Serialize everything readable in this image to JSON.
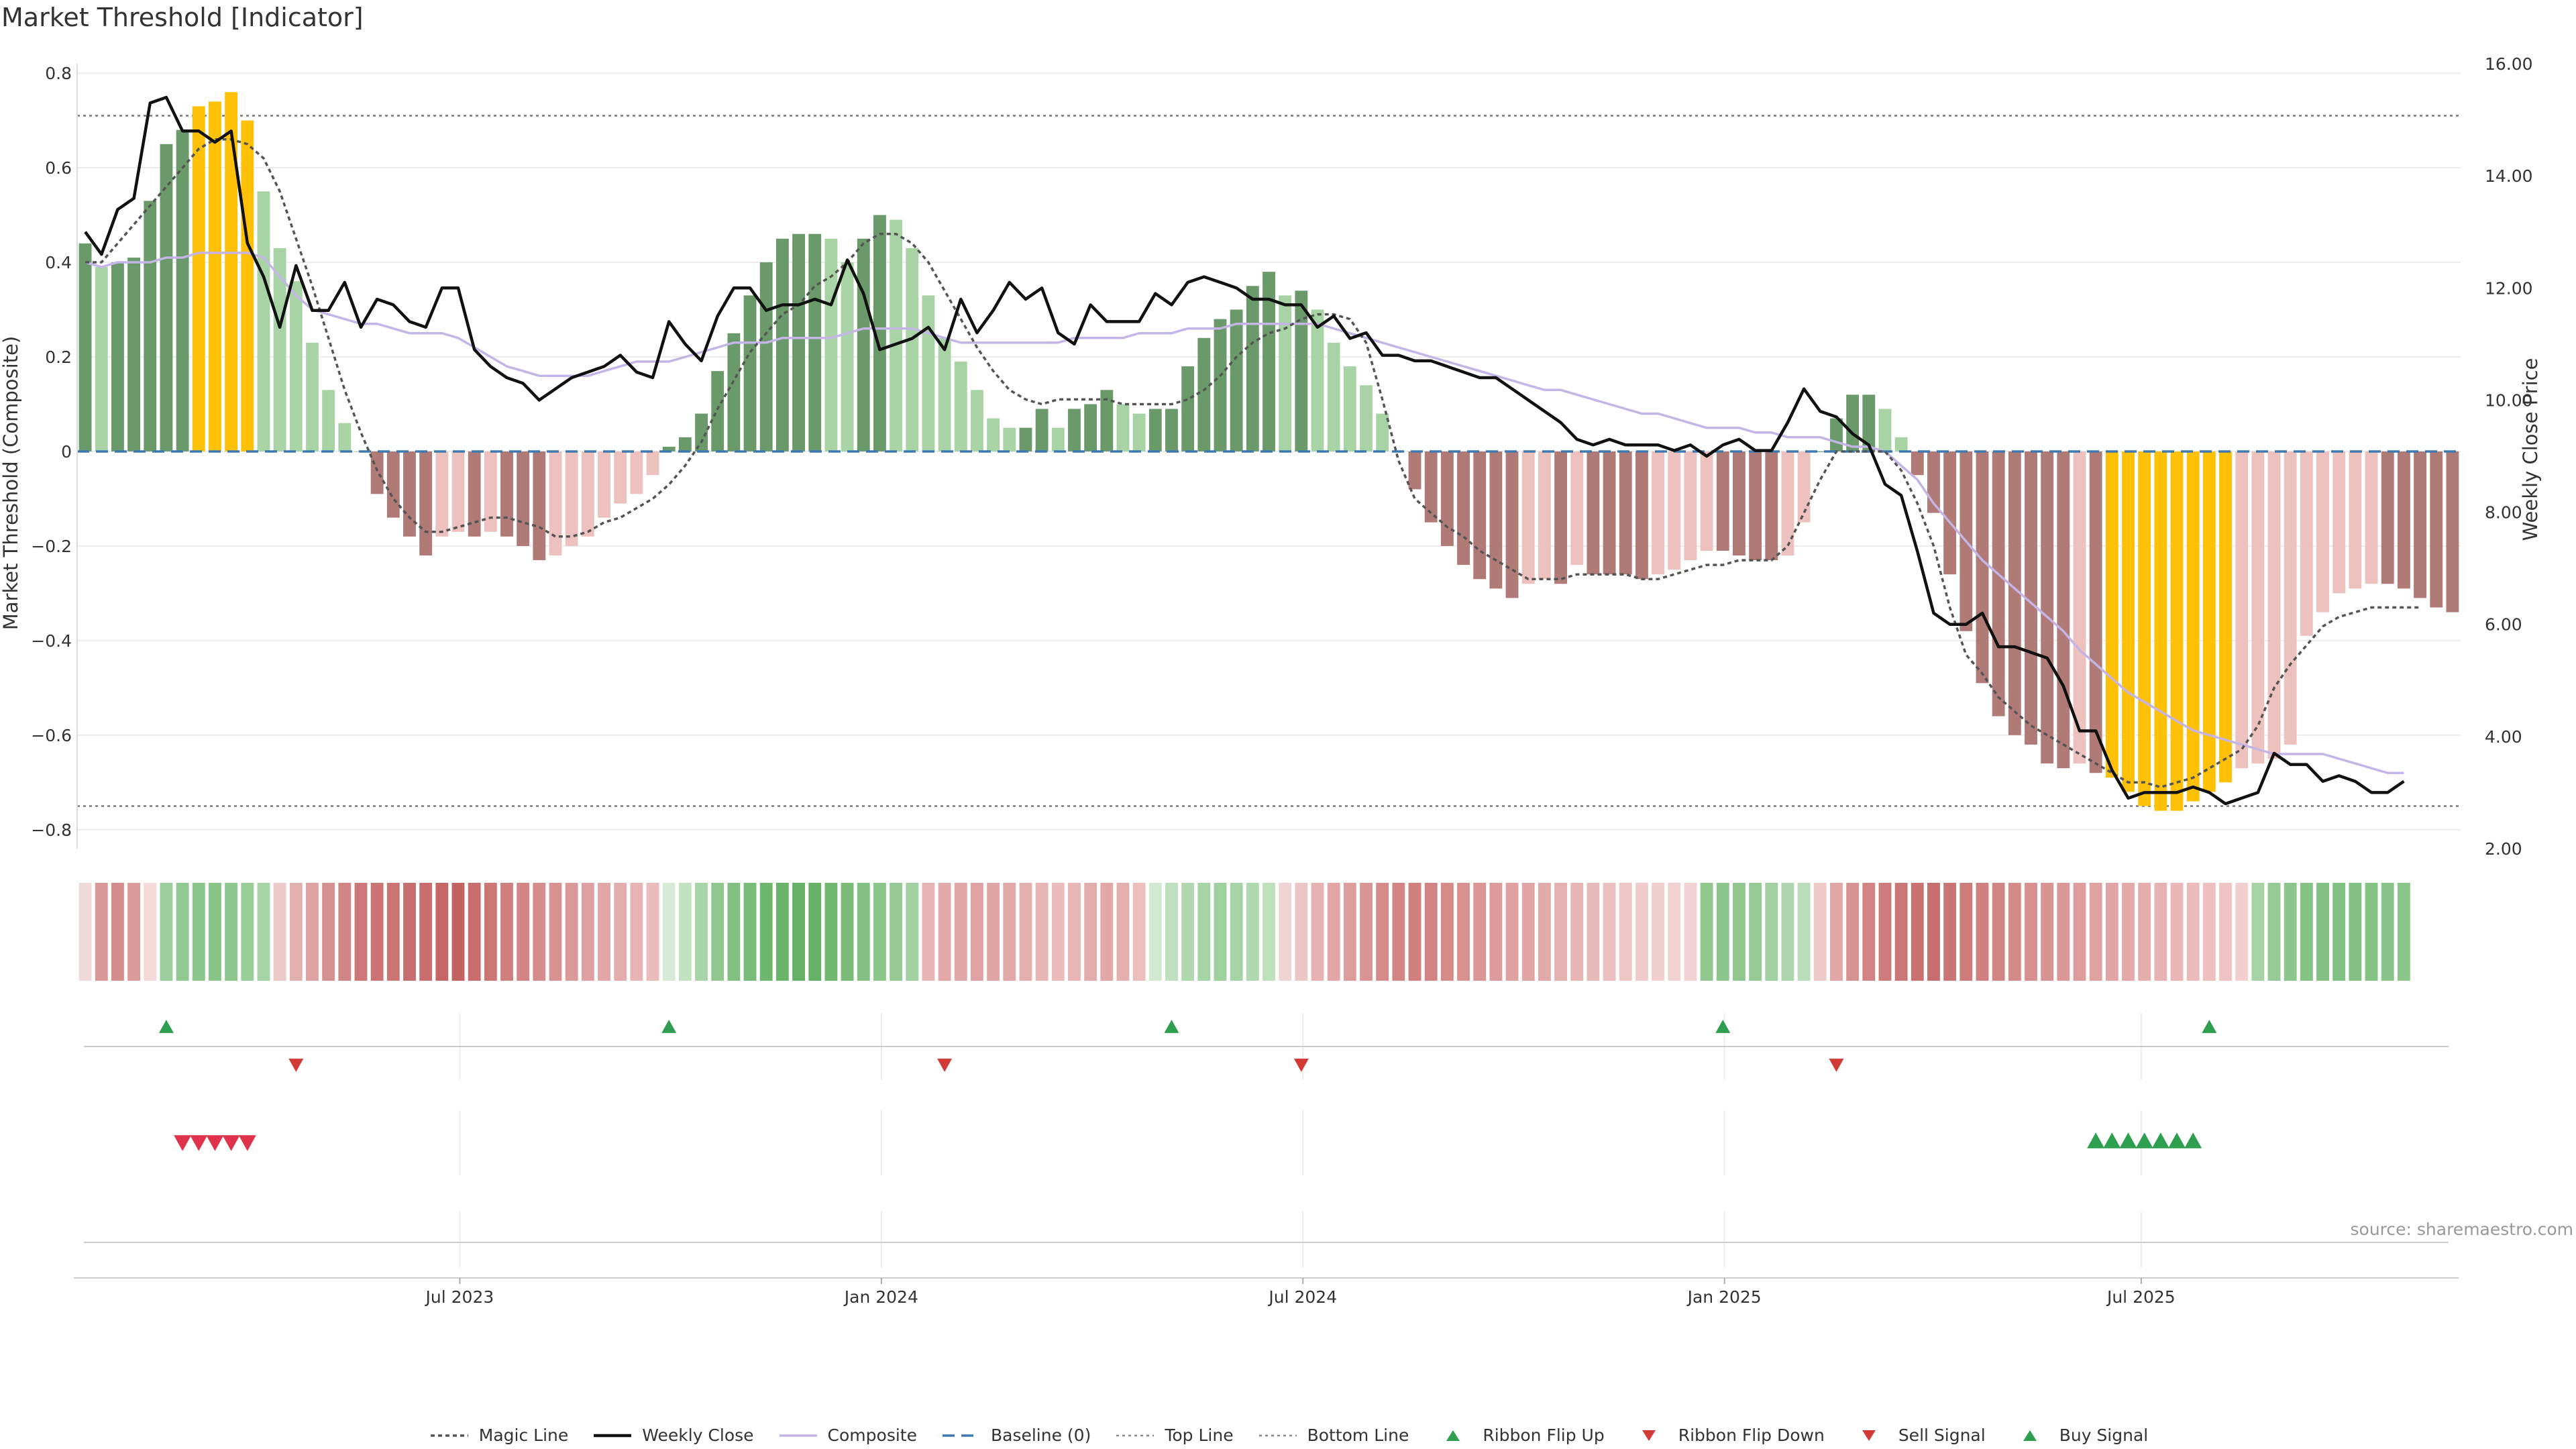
{
  "title": "Market Threshold [Indicator]",
  "source": "source: sharemaestro.com",
  "chart_data": {
    "type": "bar",
    "y_left_label": "Market Threshold (Composite)",
    "y_right_label": "Weekly Close Price",
    "y_left_ticks": [
      "0.8",
      "0.6",
      "0.4",
      "0.2",
      "0",
      "−0.2",
      "−0.4",
      "−0.6",
      "−0.8"
    ],
    "y_right_ticks": [
      "16.00",
      "14.00",
      "12.00",
      "10.00",
      "8.00",
      "6.00",
      "4.00",
      "2.00"
    ],
    "ylim_left": [
      -0.84,
      0.82
    ],
    "ylim_right": [
      2.0,
      16.0
    ],
    "x_ticks": [
      "Jul 2023",
      "Jan 2024",
      "Jul 2024",
      "Jan 2025",
      "Jul 2025"
    ],
    "top_line": 0.71,
    "bottom_line": -0.75,
    "baseline": 0,
    "composite": [
      0.44,
      0.39,
      0.4,
      0.41,
      0.53,
      0.65,
      0.68,
      0.73,
      0.74,
      0.76,
      0.7,
      0.55,
      0.43,
      0.36,
      0.23,
      0.13,
      0.06,
      0.0,
      -0.09,
      -0.14,
      -0.18,
      -0.22,
      -0.18,
      -0.17,
      -0.18,
      -0.17,
      -0.18,
      -0.2,
      -0.23,
      -0.22,
      -0.2,
      -0.18,
      -0.14,
      -0.11,
      -0.09,
      -0.05,
      0.01,
      0.03,
      0.08,
      0.17,
      0.25,
      0.33,
      0.4,
      0.45,
      0.46,
      0.46,
      0.45,
      0.4,
      0.45,
      0.5,
      0.49,
      0.43,
      0.33,
      0.24,
      0.19,
      0.13,
      0.07,
      0.05,
      0.05,
      0.09,
      0.05,
      0.09,
      0.1,
      0.13,
      0.1,
      0.08,
      0.09,
      0.09,
      0.18,
      0.24,
      0.28,
      0.3,
      0.35,
      0.38,
      0.33,
      0.34,
      0.3,
      0.23,
      0.18,
      0.14,
      0.08,
      0.0,
      -0.08,
      -0.15,
      -0.2,
      -0.24,
      -0.27,
      -0.29,
      -0.31,
      -0.28,
      -0.27,
      -0.28,
      -0.24,
      -0.26,
      -0.26,
      -0.26,
      -0.27,
      -0.26,
      -0.25,
      -0.23,
      -0.21,
      -0.21,
      -0.22,
      -0.23,
      -0.23,
      -0.22,
      -0.15,
      0.0,
      0.07,
      0.12,
      0.12,
      0.09,
      0.03,
      -0.05,
      -0.13,
      -0.26,
      -0.38,
      -0.49,
      -0.56,
      -0.6,
      -0.62,
      -0.66,
      -0.67,
      -0.66,
      -0.68,
      -0.69,
      -0.72,
      -0.75,
      -0.76,
      -0.76,
      -0.74,
      -0.72,
      -0.7,
      -0.67,
      -0.66,
      -0.65,
      -0.62,
      -0.39,
      -0.34,
      -0.3,
      -0.29,
      -0.28,
      -0.28,
      -0.29,
      -0.31,
      -0.33,
      -0.34
    ],
    "close": [
      13.0,
      12.6,
      13.4,
      13.6,
      15.3,
      15.4,
      14.8,
      14.8,
      14.6,
      14.8,
      12.8,
      12.2,
      11.3,
      12.4,
      11.6,
      11.6,
      12.1,
      11.3,
      11.8,
      11.7,
      11.4,
      11.3,
      12.0,
      12.0,
      10.9,
      10.6,
      10.4,
      10.3,
      10.0,
      10.2,
      10.4,
      10.5,
      10.6,
      10.8,
      10.5,
      10.4,
      11.4,
      11.0,
      10.7,
      11.5,
      12.0,
      12.0,
      11.6,
      11.7,
      11.7,
      11.8,
      11.7,
      12.5,
      11.9,
      10.9,
      11.0,
      11.1,
      11.3,
      10.9,
      11.8,
      11.2,
      11.6,
      12.1,
      11.8,
      12.0,
      11.2,
      11.0,
      11.7,
      11.4,
      11.4,
      11.4,
      11.9,
      11.7,
      12.1,
      12.2,
      12.1,
      12.0,
      11.8,
      11.8,
      11.7,
      11.7,
      11.3,
      11.5,
      11.1,
      11.2,
      10.8,
      10.8,
      10.7,
      10.7,
      10.6,
      10.5,
      10.4,
      10.4,
      10.2,
      10.0,
      9.8,
      9.6,
      9.3,
      9.2,
      9.3,
      9.2,
      9.2,
      9.2,
      9.1,
      9.2,
      9.0,
      9.2,
      9.3,
      9.1,
      9.1,
      9.6,
      10.2,
      9.8,
      9.7,
      9.4,
      9.2,
      8.5,
      8.3,
      7.3,
      6.2,
      6.0,
      6.0,
      6.2,
      5.6,
      5.6,
      5.5,
      5.4,
      4.9,
      4.1,
      4.1,
      3.4,
      2.9,
      3.0,
      3.0,
      3.0,
      3.1,
      3.0,
      2.8,
      2.9,
      3.0,
      3.7,
      3.5,
      3.5,
      3.2,
      3.3,
      3.2,
      3.0,
      3.0,
      3.2
    ],
    "magic": [
      0.4,
      0.4,
      0.44,
      0.48,
      0.52,
      0.56,
      0.6,
      0.64,
      0.66,
      0.66,
      0.65,
      0.62,
      0.55,
      0.45,
      0.35,
      0.24,
      0.13,
      0.04,
      -0.04,
      -0.1,
      -0.14,
      -0.17,
      -0.17,
      -0.16,
      -0.15,
      -0.14,
      -0.14,
      -0.15,
      -0.16,
      -0.18,
      -0.18,
      -0.17,
      -0.15,
      -0.14,
      -0.12,
      -0.1,
      -0.07,
      -0.03,
      0.02,
      0.09,
      0.15,
      0.21,
      0.25,
      0.29,
      0.31,
      0.35,
      0.37,
      0.4,
      0.44,
      0.46,
      0.46,
      0.44,
      0.4,
      0.34,
      0.28,
      0.22,
      0.17,
      0.13,
      0.11,
      0.1,
      0.11,
      0.11,
      0.11,
      0.11,
      0.1,
      0.1,
      0.1,
      0.1,
      0.11,
      0.13,
      0.16,
      0.2,
      0.23,
      0.25,
      0.26,
      0.28,
      0.29,
      0.29,
      0.28,
      0.23,
      0.11,
      -0.02,
      -0.1,
      -0.13,
      -0.16,
      -0.18,
      -0.21,
      -0.23,
      -0.25,
      -0.27,
      -0.27,
      -0.27,
      -0.26,
      -0.26,
      -0.26,
      -0.26,
      -0.27,
      -0.27,
      -0.26,
      -0.25,
      -0.24,
      -0.24,
      -0.23,
      -0.23,
      -0.23,
      -0.2,
      -0.13,
      -0.06,
      0.0,
      0.0,
      0.0,
      0.0,
      -0.04,
      -0.11,
      -0.2,
      -0.33,
      -0.43,
      -0.47,
      -0.52,
      -0.55,
      -0.58,
      -0.6,
      -0.62,
      -0.64,
      -0.66,
      -0.68,
      -0.7,
      -0.7,
      -0.71,
      -0.7,
      -0.69,
      -0.67,
      -0.65,
      -0.63,
      -0.58,
      -0.5,
      -0.45,
      -0.41,
      -0.37,
      -0.35,
      -0.34,
      -0.33,
      -0.33,
      -0.33,
      -0.33
    ],
    "composite_smooth": [
      0.4,
      0.39,
      0.4,
      0.4,
      0.4,
      0.41,
      0.41,
      0.42,
      0.42,
      0.42,
      0.42,
      0.41,
      0.37,
      0.33,
      0.3,
      0.29,
      0.28,
      0.27,
      0.27,
      0.26,
      0.25,
      0.25,
      0.25,
      0.24,
      0.22,
      0.2,
      0.18,
      0.17,
      0.16,
      0.16,
      0.16,
      0.16,
      0.17,
      0.18,
      0.19,
      0.19,
      0.19,
      0.2,
      0.21,
      0.22,
      0.23,
      0.23,
      0.23,
      0.24,
      0.24,
      0.24,
      0.24,
      0.25,
      0.26,
      0.26,
      0.26,
      0.26,
      0.25,
      0.24,
      0.23,
      0.23,
      0.23,
      0.23,
      0.23,
      0.23,
      0.23,
      0.24,
      0.24,
      0.24,
      0.24,
      0.25,
      0.25,
      0.25,
      0.26,
      0.26,
      0.26,
      0.27,
      0.27,
      0.27,
      0.27,
      0.27,
      0.27,
      0.26,
      0.25,
      0.24,
      0.23,
      0.22,
      0.21,
      0.2,
      0.19,
      0.18,
      0.17,
      0.16,
      0.15,
      0.14,
      0.13,
      0.13,
      0.12,
      0.11,
      0.1,
      0.09,
      0.08,
      0.08,
      0.07,
      0.06,
      0.05,
      0.05,
      0.05,
      0.04,
      0.04,
      0.03,
      0.03,
      0.03,
      0.02,
      0.01,
      0.01,
      0.0,
      -0.03,
      -0.06,
      -0.11,
      -0.15,
      -0.19,
      -0.23,
      -0.26,
      -0.29,
      -0.32,
      -0.35,
      -0.38,
      -0.42,
      -0.45,
      -0.48,
      -0.51,
      -0.53,
      -0.55,
      -0.57,
      -0.59,
      -0.6,
      -0.61,
      -0.62,
      -0.63,
      -0.64,
      -0.64,
      -0.64,
      -0.64,
      -0.65,
      -0.66,
      -0.67,
      -0.68,
      -0.68
    ],
    "bar_colors": {
      "strong_positive": "#6a9a6a",
      "weak_positive": "#a8d4a5",
      "extreme": "#ffc107",
      "strong_negative": "#b07a76",
      "weak_negative": "#edc1bd"
    },
    "ribbon_colors": [
      "#f0d9d9",
      "#d99898",
      "#d68c8c",
      "#dc9a9a",
      "#f5dada",
      "#9bcf9d",
      "#90c991",
      "#8ac689",
      "#88c587",
      "#8cc78c",
      "#9acf9a",
      "#a6d4a6",
      "#efcaca",
      "#e3b0b0",
      "#dea2a2",
      "#d69090",
      "#d18585",
      "#cd7979",
      "#cb7474",
      "#cc7575",
      "#c96e6e",
      "#c96e6e",
      "#c66666",
      "#c46161",
      "#c96e6e",
      "#cc7676",
      "#d07f7f",
      "#d38585",
      "#d58c8c",
      "#d89292",
      "#db9999",
      "#dea0a0",
      "#e1a6a6",
      "#e4adad",
      "#e7b4b4",
      "#eabbbb",
      "#d6ebd6",
      "#c2e2c2",
      "#a8d5a8",
      "#8fc78f",
      "#82c182",
      "#78bc78",
      "#6fb76f",
      "#6ab46a",
      "#66b266",
      "#66b266",
      "#70b770",
      "#78bc78",
      "#82c182",
      "#8bc68b",
      "#95ca95",
      "#a0d0a0",
      "#e8b3b3",
      "#e4aaaa",
      "#e2a6a6",
      "#e0a2a2",
      "#e1a5a5",
      "#e3a8a8",
      "#e6afaf",
      "#e8b5b5",
      "#ebbaba",
      "#e9b6b6",
      "#e4acac",
      "#e2a7a7",
      "#e6afaf",
      "#ecbebe",
      "#d1e8d1",
      "#bfe0bf",
      "#b0d9b0",
      "#a5d4a5",
      "#9fd19f",
      "#a6d4a6",
      "#b0d9b0",
      "#bde0bd",
      "#f0d3d3",
      "#ecc5c5",
      "#e6b2b2",
      "#e2a6a6",
      "#de9d9d",
      "#da9494",
      "#d68b8b",
      "#d38484",
      "#d17f7f",
      "#d38383",
      "#d68a8a",
      "#d99090",
      "#db9595",
      "#dd9b9b",
      "#dfa0a0",
      "#e1a5a5",
      "#e3aaaa",
      "#e5b0b0",
      "#e7b5b5",
      "#e9baba",
      "#ebbfbf",
      "#eec6c6",
      "#f0cccc",
      "#f1cfcf",
      "#f2d1d1",
      "#f2d2d2",
      "#8fc78f",
      "#8bc68b",
      "#8fc78f",
      "#96cb96",
      "#a0d0a0",
      "#aed6ae",
      "#b9dcb9",
      "#eecaca",
      "#e2a6a6",
      "#d99292",
      "#d28383",
      "#ce7b7b",
      "#cc7777",
      "#ca7272",
      "#c86e6e",
      "#cb7474",
      "#ce7b7b",
      "#d08080",
      "#d38585",
      "#d58a8a",
      "#d88f8f",
      "#da9393",
      "#dc9898",
      "#de9c9c",
      "#e0a1a1",
      "#e2a5a5",
      "#e4a9a9",
      "#e6adad",
      "#e8b2b2",
      "#eab6b6",
      "#ecbaba",
      "#eebfbf",
      "#f0c4c4",
      "#f3cfcf",
      "#a6d4a6",
      "#96cb96",
      "#8bc68b",
      "#85c385",
      "#82c182",
      "#80c080",
      "#82c182",
      "#85c385",
      "#88c588",
      "#8ac68a"
    ],
    "ribbon_flip_up_x": [
      5,
      36,
      67,
      101,
      131
    ],
    "ribbon_flip_down_x": [
      13,
      53,
      75,
      108
    ],
    "sell_signal_x": [
      6,
      7,
      8,
      9,
      10
    ],
    "buy_signal_x": [
      124,
      125,
      126,
      127,
      128,
      129,
      130
    ]
  },
  "legend": [
    {
      "label": "Magic Line",
      "icon": "dotted-line-dark"
    },
    {
      "label": "Weekly Close",
      "icon": "solid-line-black"
    },
    {
      "label": "Composite",
      "icon": "solid-line-lavender"
    },
    {
      "label": "Baseline (0)",
      "icon": "dashed-line-blue"
    },
    {
      "label": "Top Line",
      "icon": "dotted-line-grey"
    },
    {
      "label": "Bottom Line",
      "icon": "dotted-line-grey"
    },
    {
      "label": "Ribbon Flip Up",
      "icon": "triangle-up-green"
    },
    {
      "label": "Ribbon Flip Down",
      "icon": "triangle-down-red"
    },
    {
      "label": "Sell Signal",
      "icon": "triangle-down-red"
    },
    {
      "label": "Buy Signal",
      "icon": "triangle-up-green"
    }
  ]
}
